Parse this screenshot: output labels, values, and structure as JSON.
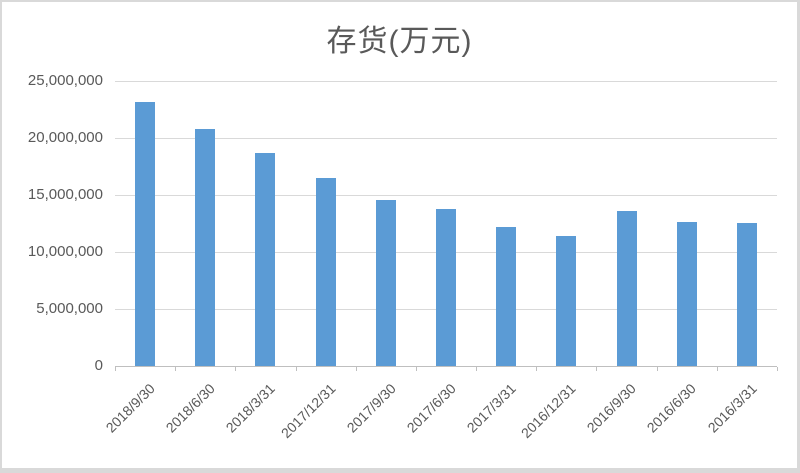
{
  "chart": {
    "title": "存货(万元)",
    "colors": {
      "bar": "#5b9bd5",
      "gridline": "#d9d9d9",
      "axis_line": "#bfbfbf",
      "text": "#595959",
      "frame_border": "#d9d9d9",
      "background": "#ffffff"
    }
  },
  "chart_data": {
    "type": "bar",
    "title": "存货(万元)",
    "categories": [
      "2018/9/30",
      "2018/6/30",
      "2018/3/31",
      "2017/12/31",
      "2017/9/30",
      "2017/6/30",
      "2017/3/31",
      "2016/12/31",
      "2016/9/30",
      "2016/6/30",
      "2016/3/31"
    ],
    "values": [
      23150000,
      20750000,
      18700000,
      16450000,
      14550000,
      13750000,
      12200000,
      11400000,
      13600000,
      12650000,
      12550000
    ],
    "xlabel": "",
    "ylabel": "",
    "ylim": [
      0,
      25000000
    ],
    "ytick_interval": 5000000,
    "ytick_labels": [
      "0",
      "5,000,000",
      "10,000,000",
      "15,000,000",
      "20,000,000",
      "25,000,000"
    ],
    "grid": true,
    "legend_position": "none",
    "x_label_rotation_deg": 45,
    "bar_color": "#5b9bd5"
  }
}
